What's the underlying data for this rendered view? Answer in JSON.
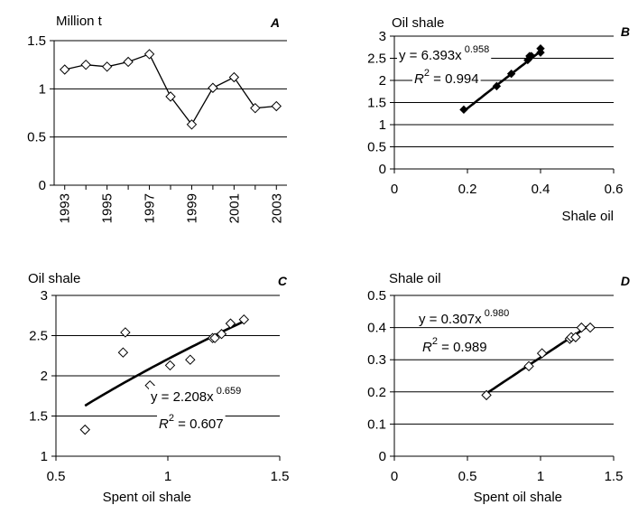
{
  "chart_data": [
    {
      "panel": "A",
      "type": "line",
      "title": "Million t",
      "x": [
        1993,
        1994,
        1995,
        1996,
        1997,
        1998,
        1999,
        2000,
        2001,
        2002,
        2003
      ],
      "y": [
        1.2,
        1.25,
        1.23,
        1.28,
        1.36,
        0.92,
        0.63,
        1.01,
        1.12,
        0.8,
        0.82
      ],
      "xticks": [
        "1993",
        "1995",
        "1997",
        "1999",
        "2001",
        "2003"
      ],
      "yticks": [
        "0",
        "0.5",
        "1",
        "1.5"
      ],
      "ylim": [
        0,
        1.5
      ],
      "grid": true
    },
    {
      "panel": "B",
      "type": "scatter",
      "title": "Oil shale",
      "xlabel": "Shale oil",
      "x": [
        0.19,
        0.28,
        0.32,
        0.365,
        0.37,
        0.375,
        0.4,
        0.4
      ],
      "y": [
        1.34,
        1.87,
        2.15,
        2.46,
        2.55,
        2.55,
        2.63,
        2.72
      ],
      "xticks": [
        "0",
        "0.2",
        "0.4",
        "0.6"
      ],
      "yticks": [
        "0",
        "0.5",
        "1",
        "1.5",
        "2",
        "2.5",
        "3"
      ],
      "xlim": [
        0,
        0.6
      ],
      "ylim": [
        0,
        3
      ],
      "fit": {
        "a": 6.393,
        "b": 0.958,
        "eq_prefix": "y = 6.393x",
        "eq_exp": " 0.958",
        "r2_prefix": "R",
        "r2_sup": "2",
        "r2_value": " = 0.994"
      },
      "grid": true
    },
    {
      "panel": "C",
      "type": "scatter",
      "title": "Oil shale",
      "xlabel": "Spent oil shale",
      "x": [
        0.63,
        0.8,
        0.81,
        0.92,
        1.01,
        1.1,
        1.2,
        1.21,
        1.24,
        1.28,
        1.34
      ],
      "y": [
        1.33,
        2.29,
        2.54,
        1.88,
        2.13,
        2.2,
        2.47,
        2.47,
        2.52,
        2.65,
        2.7
      ],
      "xticks": [
        "0.5",
        "1",
        "1.5"
      ],
      "yticks": [
        "1",
        "1.5",
        "2",
        "2.5",
        "3"
      ],
      "xlim": [
        0.5,
        1.5
      ],
      "ylim": [
        1,
        3
      ],
      "fit": {
        "a": 2.208,
        "b": 0.659,
        "eq_prefix": "y = 2.208x",
        "eq_exp": " 0.659",
        "r2_prefix": "R",
        "r2_sup": "2",
        "r2_value": " = 0.607"
      },
      "grid": true
    },
    {
      "panel": "D",
      "type": "scatter",
      "title": "Shale oil",
      "xlabel": "Spent oil shale",
      "x": [
        0.63,
        0.92,
        1.01,
        1.2,
        1.21,
        1.24,
        1.28,
        1.34
      ],
      "y": [
        0.19,
        0.28,
        0.32,
        0.365,
        0.37,
        0.37,
        0.4,
        0.4
      ],
      "xticks": [
        "0",
        "0.5",
        "1",
        "1.5"
      ],
      "yticks": [
        "0",
        "0.1",
        "0.2",
        "0.3",
        "0.4",
        "0.5"
      ],
      "xlim": [
        0,
        1.5
      ],
      "ylim": [
        0,
        0.5
      ],
      "fit": {
        "a": 0.307,
        "b": 0.98,
        "eq_prefix": "y = 0.307x",
        "eq_exp": " 0.980",
        "r2_prefix": "R",
        "r2_sup": "2",
        "r2_value": " = 0.989"
      },
      "grid": true
    }
  ],
  "colors": {
    "axis": "#000000",
    "grid": "#000000",
    "line": "#000000",
    "marker_fill": "#ffffff",
    "filled_marker": "#000000"
  }
}
